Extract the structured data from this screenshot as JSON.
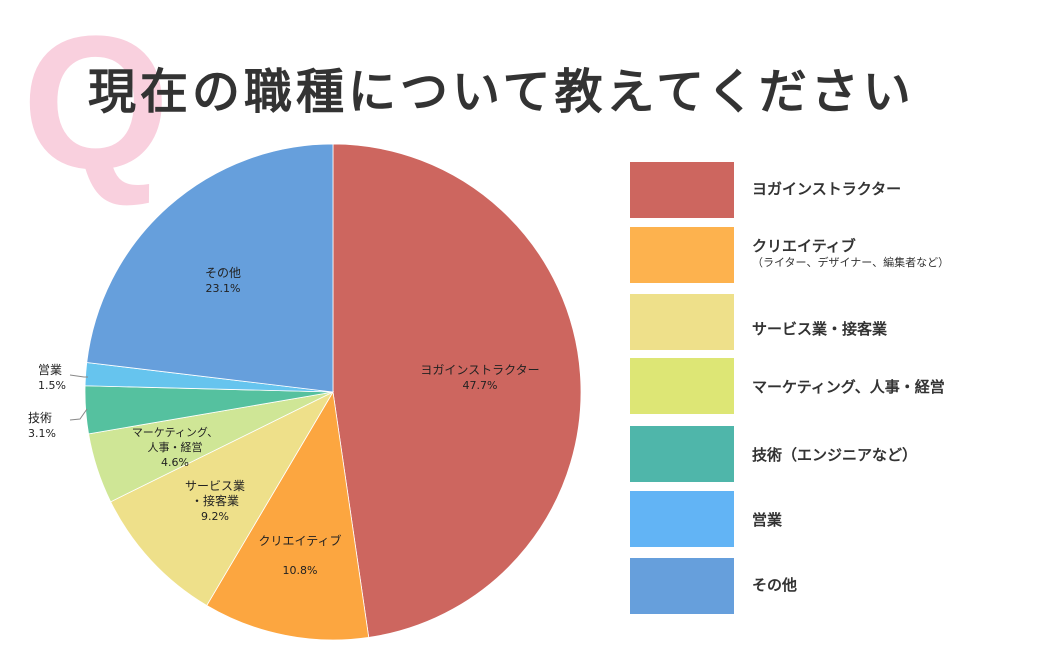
{
  "header": {
    "q_mark": "Q",
    "title": "現在の職種について教えてください"
  },
  "legend": {
    "items": [
      {
        "label": "ヨガインストラクター",
        "sub": "",
        "color": "#cd665f"
      },
      {
        "label": "クリエイティブ",
        "sub": "（ライター、デザイナー、編集者など）",
        "color": "#fdb24e"
      },
      {
        "label": "サービス業・接客業",
        "sub": "",
        "color": "#eee08a"
      },
      {
        "label": "マーケティング、人事・経営",
        "sub": "",
        "color": "#dde675"
      },
      {
        "label": "技術（エンジニアなど）",
        "sub": "",
        "color": "#4fb6aa"
      },
      {
        "label": "営業",
        "sub": "",
        "color": "#62b4f5"
      },
      {
        "label": "その他",
        "sub": "",
        "color": "#669fdc"
      }
    ]
  },
  "chart_data": {
    "type": "pie",
    "title": "現在の職種について教えてください",
    "categories": [
      "ヨガインストラクター",
      "クリエイティブ",
      "サービス業・接客業",
      "マーケティング、人事・経営",
      "技術",
      "営業",
      "その他"
    ],
    "values": [
      47.7,
      10.8,
      9.2,
      4.6,
      3.1,
      1.5,
      23.1
    ],
    "unit": "%",
    "start_angle": "12 o'clock, clockwise",
    "colors": [
      "#cd665f",
      "#fca640",
      "#eee08a",
      "#cfe696",
      "#55c19f",
      "#66c4ee",
      "#669fdc"
    ],
    "slice_labels": [
      {
        "name": "ヨガインストラクター",
        "pct": "47.7%"
      },
      {
        "name": "クリエイティブ",
        "pct": "10.8%"
      },
      {
        "name": "サービス業\n・接客業",
        "pct": "9.2%"
      },
      {
        "name": "マーケティング、\n人事・経営",
        "pct": "4.6%"
      },
      {
        "name": "技術",
        "pct": "3.1%"
      },
      {
        "name": "営業",
        "pct": "1.5%"
      },
      {
        "name": "その他",
        "pct": "23.1%"
      }
    ],
    "legend_position": "right"
  }
}
